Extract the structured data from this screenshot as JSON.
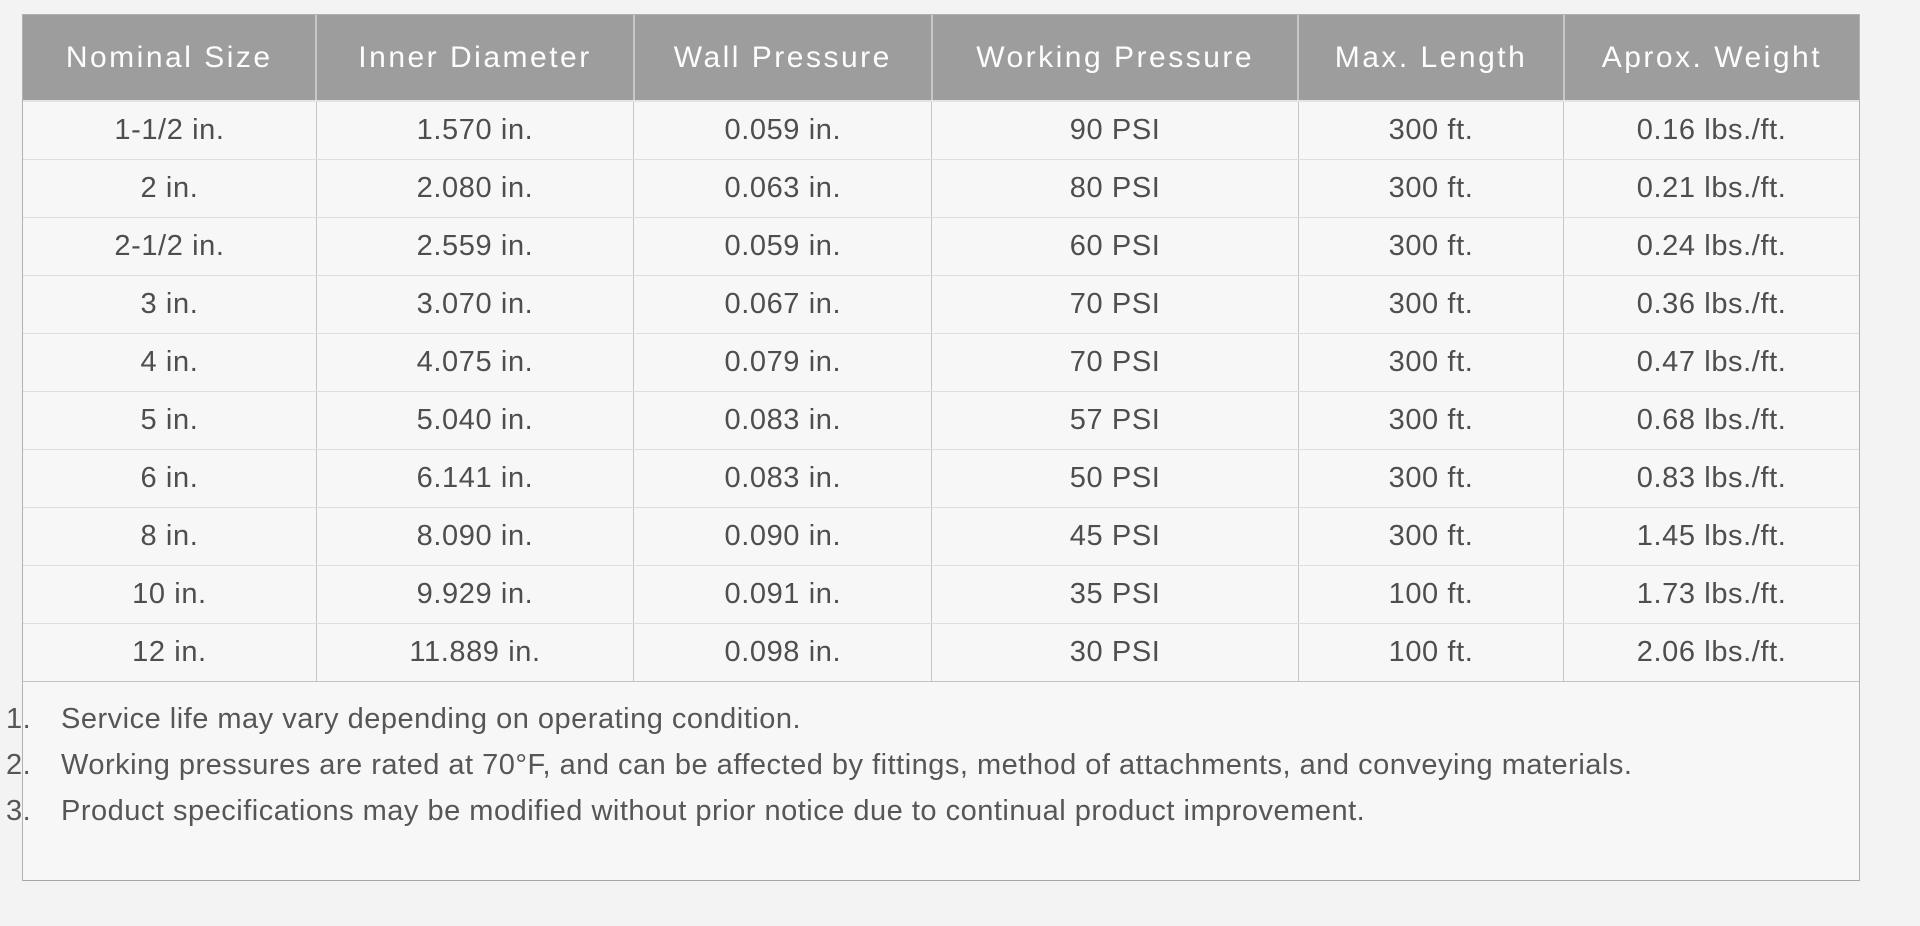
{
  "table": {
    "columns": [
      "Nominal Size",
      "Inner Diameter",
      "Wall Pressure",
      "Working Pressure",
      "Max. Length",
      "Aprox. Weight"
    ],
    "rows": [
      [
        "1-1/2 in.",
        "1.570 in.",
        "0.059 in.",
        "90 PSI",
        "300 ft.",
        "0.16 lbs./ft."
      ],
      [
        "2 in.",
        "2.080 in.",
        "0.063 in.",
        "80 PSI",
        "300 ft.",
        "0.21 lbs./ft."
      ],
      [
        "2-1/2 in.",
        "2.559 in.",
        "0.059 in.",
        "60 PSI",
        "300 ft.",
        "0.24 lbs./ft."
      ],
      [
        "3 in.",
        "3.070 in.",
        "0.067 in.",
        "70 PSI",
        "300 ft.",
        "0.36 lbs./ft."
      ],
      [
        "4 in.",
        "4.075 in.",
        "0.079 in.",
        "70 PSI",
        "300 ft.",
        "0.47 lbs./ft."
      ],
      [
        "5 in.",
        "5.040 in.",
        "0.083 in.",
        "57 PSI",
        "300 ft.",
        "0.68 lbs./ft."
      ],
      [
        "6 in.",
        "6.141 in.",
        "0.083 in.",
        "50 PSI",
        "300 ft.",
        "0.83 lbs./ft."
      ],
      [
        "8 in.",
        "8.090 in.",
        "0.090 in.",
        "45 PSI",
        "300 ft.",
        "1.45 lbs./ft."
      ],
      [
        "10 in.",
        "9.929 in.",
        "0.091 in.",
        "35 PSI",
        "100 ft.",
        "1.73 lbs./ft."
      ],
      [
        "12 in.",
        "11.889 in.",
        "0.098 in.",
        "30 PSI",
        "100 ft.",
        "2.06 lbs./ft."
      ]
    ]
  },
  "notes": [
    {
      "number": "1.",
      "text": "Service life may vary depending on operating condition."
    },
    {
      "number": "2.",
      "text": "Working pressures are rated at 70°F, and can be affected by fittings, method of attachments, and conveying materials."
    },
    {
      "number": "3.",
      "text": "Product specifications may be modified without prior notice due to continual product improvement."
    }
  ],
  "colors": {
    "header_background": "#9d9d9d",
    "header_text": "#fdfdfd",
    "cell_text": "#4e4e4e",
    "note_text": "#565656",
    "panel_background": "#f7f7f8",
    "page_background": "#f3f3f4",
    "panel_border": "#b2b2b2"
  }
}
